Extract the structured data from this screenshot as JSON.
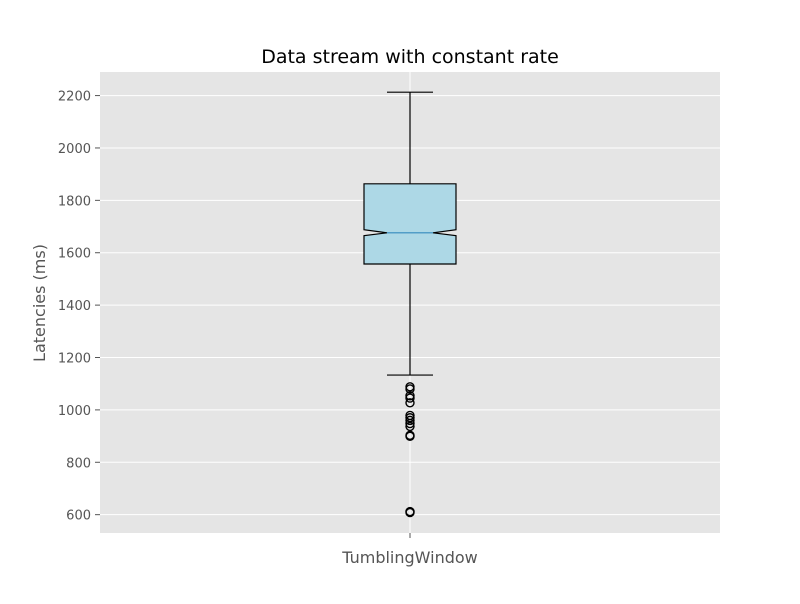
{
  "chart_data": {
    "type": "box",
    "title": "Data stream with constant rate",
    "xlabel": "",
    "ylabel": "Latencies (ms)",
    "categories": [
      "TumblingWindow"
    ],
    "ylim": [
      530,
      2290
    ],
    "yticks": [
      600,
      800,
      1000,
      1200,
      1400,
      1600,
      1800,
      2000,
      2200
    ],
    "grid": true,
    "notched": true,
    "boxes": [
      {
        "category": "TumblingWindow",
        "whisker_low": 1133,
        "q1": 1557,
        "median": 1676,
        "q3": 1863,
        "whisker_high": 2213,
        "notch_low": 1665,
        "notch_high": 1688,
        "outliers": [
          1088,
          1080,
          1054,
          1045,
          1027,
          979,
          970,
          960,
          948,
          937,
          903,
          899,
          612,
          608
        ]
      }
    ],
    "colors": {
      "plot_background": "#e5e5e5",
      "grid": "#ffffff",
      "box_fill": "#add8e6",
      "box_edge": "#000000",
      "median": "#348abd",
      "text": "#555555",
      "title": "#000000"
    }
  }
}
